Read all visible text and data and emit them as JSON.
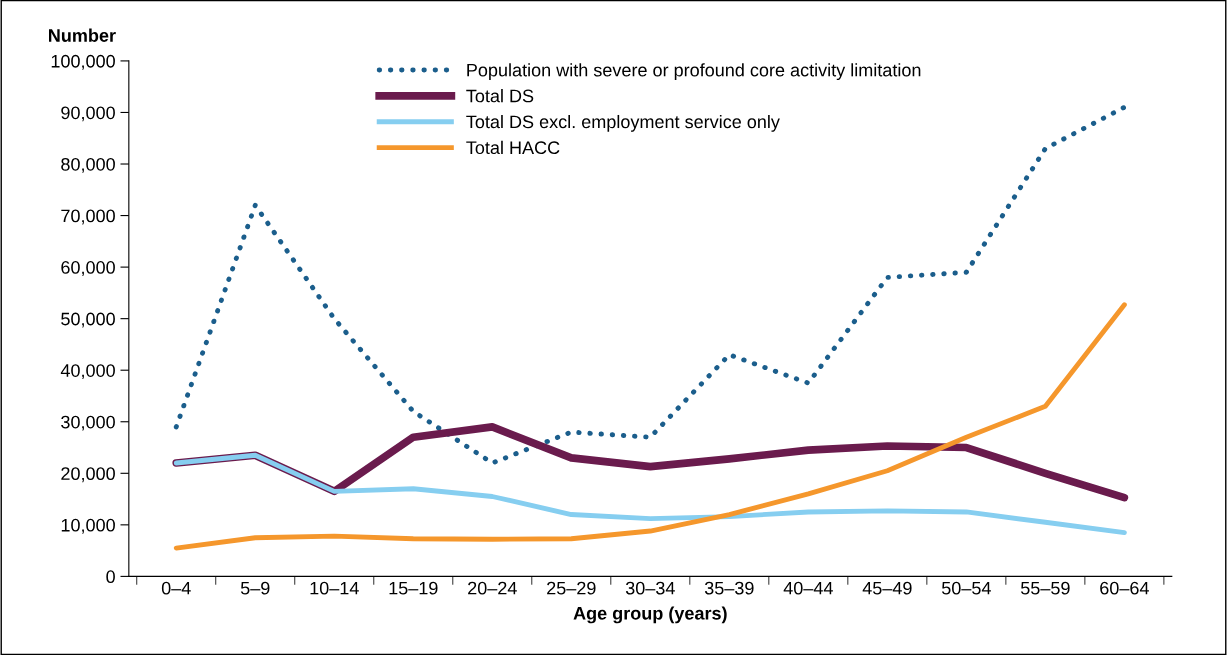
{
  "chart_data": {
    "type": "line",
    "xlabel": "Age group (years)",
    "ylabel": "Number",
    "categories": [
      "0–4",
      "5–9",
      "10–14",
      "15–19",
      "20–24",
      "25–29",
      "30–34",
      "35–39",
      "40–44",
      "45–49",
      "50–54",
      "55–59",
      "60–64"
    ],
    "series": [
      {
        "name": "Population with severe or profound core activity limitation",
        "color": "#1b5e8c",
        "line_style": "dotted",
        "values": [
          29000,
          72000,
          50000,
          32000,
          22000,
          28000,
          27000,
          43000,
          37500,
          58000,
          59000,
          83000,
          91000
        ]
      },
      {
        "name": "Total DS",
        "color": "#6a1b4d",
        "line_style": "solid",
        "values": [
          22000,
          23500,
          16500,
          27000,
          29000,
          23000,
          21300,
          22800,
          24500,
          25300,
          25000,
          20000,
          15300
        ]
      },
      {
        "name": "Total DS excl. employment service only",
        "color": "#86cef0",
        "line_style": "solid",
        "values": [
          22000,
          23500,
          16500,
          17000,
          15500,
          12000,
          11200,
          11600,
          12500,
          12700,
          12500,
          10500,
          8500
        ]
      },
      {
        "name": "Total HACC",
        "color": "#f5972c",
        "line_style": "solid",
        "values": [
          5500,
          7500,
          7800,
          7300,
          7200,
          7300,
          8800,
          12000,
          16000,
          20500,
          27000,
          33000,
          52700
        ]
      }
    ],
    "ylim": [
      0,
      100000
    ],
    "yticks": [
      {
        "value": 0,
        "label": "0"
      },
      {
        "value": 10000,
        "label": "10,000"
      },
      {
        "value": 20000,
        "label": "20,000"
      },
      {
        "value": 30000,
        "label": "30,000"
      },
      {
        "value": 40000,
        "label": "40,000"
      },
      {
        "value": 50000,
        "label": "50,000"
      },
      {
        "value": 60000,
        "label": "60,000"
      },
      {
        "value": 70000,
        "label": "70,000"
      },
      {
        "value": 80000,
        "label": "80,000"
      },
      {
        "value": 90000,
        "label": "90,000"
      },
      {
        "value": 100000,
        "label": "100,000"
      }
    ],
    "legend": "top",
    "grid": false,
    "marker": "none"
  }
}
